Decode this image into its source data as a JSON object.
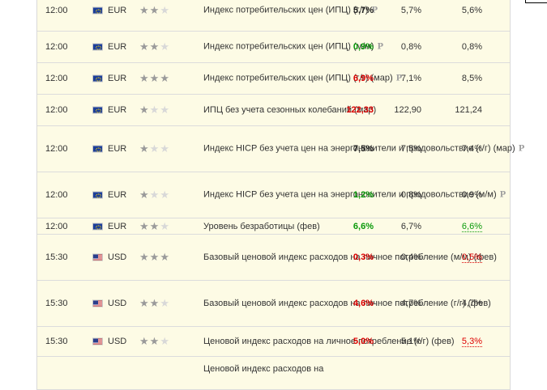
{
  "rows": [
    {
      "time": "12:00",
      "currency": "EUR",
      "flag": "eu",
      "stars": 2,
      "event": "Индекс потребительских цен (ИПЦ) (г/г)",
      "lines": 2,
      "preliminary": true,
      "actual": "5,7%",
      "actual_color": "black",
      "forecast": "5,7%",
      "previous": "5,6%",
      "previous_style": "plain"
    },
    {
      "time": "12:00",
      "currency": "EUR",
      "flag": "eu",
      "stars": 2,
      "event": "Индекс потребительских цен (ИПЦ) (м/м)",
      "lines": 2,
      "preliminary": true,
      "actual": "0,9%",
      "actual_color": "green",
      "forecast": "0,8%",
      "previous": "0,8%",
      "previous_style": "plain"
    },
    {
      "time": "12:00",
      "currency": "EUR",
      "flag": "eu",
      "stars": 3,
      "event": "Индекс потребительских цен (ИПЦ) (г/г) (мар)",
      "lines": 2,
      "preliminary": true,
      "actual": "6,9%",
      "actual_color": "red",
      "forecast": "7,1%",
      "previous": "8,5%",
      "previous_style": "plain"
    },
    {
      "time": "12:00",
      "currency": "EUR",
      "flag": "eu",
      "stars": 1,
      "event": "ИПЦ без учета сезонных колебаний (мар)",
      "lines": 2,
      "preliminary": false,
      "actual": "122,33",
      "actual_color": "red",
      "forecast": "122,90",
      "previous": "121,24",
      "previous_style": "plain"
    },
    {
      "time": "12:00",
      "currency": "EUR",
      "flag": "eu",
      "stars": 1,
      "event": "Индекс HICP без учета цен на энергоносители и продовольствие (г/г) (мар)",
      "lines": 3,
      "preliminary": true,
      "actual": "7,5%",
      "actual_color": "black",
      "forecast": "7,5%",
      "previous": "7,4%",
      "previous_style": "plain"
    },
    {
      "time": "12:00",
      "currency": "EUR",
      "flag": "eu",
      "stars": 1,
      "event": "Индекс HICP без учета цен на энергоносители и продовольствие (м/м)",
      "lines": 3,
      "preliminary": true,
      "actual": "1,2%",
      "actual_color": "green",
      "forecast": "0,8%",
      "previous": "0,9%",
      "previous_style": "plain"
    },
    {
      "time": "12:00",
      "currency": "EUR",
      "flag": "eu",
      "stars": 2,
      "event": "Уровень безработицы (фев)",
      "lines": 1,
      "preliminary": false,
      "actual": "6,6%",
      "actual_color": "green",
      "forecast": "6,7%",
      "previous": "6,6%",
      "previous_style": "under-green"
    },
    {
      "time": "15:30",
      "currency": "USD",
      "flag": "us",
      "stars": 3,
      "event": "Базовый ценовой индекс расходов на личное потребление (м/м) (фев)",
      "lines": 3,
      "preliminary": false,
      "actual": "0,3%",
      "actual_color": "red",
      "forecast": "0,4%",
      "previous": "0,5%",
      "previous_style": "under-red"
    },
    {
      "time": "15:30",
      "currency": "USD",
      "flag": "us",
      "stars": 2,
      "event": "Базовый ценовой индекс расходов на личное потребление (г/г) (фев)",
      "lines": 3,
      "preliminary": false,
      "actual": "4,6%",
      "actual_color": "red",
      "forecast": "4,7%",
      "previous": "4,7%",
      "previous_style": "plain"
    },
    {
      "time": "15:30",
      "currency": "USD",
      "flag": "us",
      "stars": 2,
      "event": "Ценовой индекс расходов на личное потребление (г/г) (фев)",
      "lines": 2,
      "preliminary": false,
      "actual": "5,0%",
      "actual_color": "red",
      "forecast": "5,1%",
      "previous": "5,3%",
      "previous_style": "under-red"
    },
    {
      "time": "",
      "currency": "",
      "flag": "none",
      "stars": 0,
      "event": "Ценовой индекс расходов на",
      "lines": 1,
      "preliminary": false,
      "actual": "",
      "actual_color": "black",
      "forecast": "",
      "previous": "",
      "previous_style": "plain"
    }
  ],
  "preliminary_marker": "P",
  "star_glyph": "★"
}
